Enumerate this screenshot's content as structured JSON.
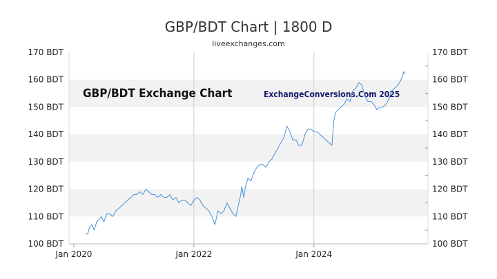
{
  "title": "GBP/BDT Chart | 1800 D",
  "subtitle": "liveexchanges.com",
  "chart_data": {
    "type": "line",
    "title": "GBP/BDT Chart | 1800 D",
    "xlabel": "",
    "ylabel": "",
    "unit": "BDT",
    "ylim": [
      100,
      170
    ],
    "xlim": [
      2019.92,
      2025.9
    ],
    "y_ticks": [
      100,
      110,
      120,
      130,
      140,
      150,
      160,
      170
    ],
    "y_tick_labels": [
      "100 BDT",
      "110 BDT",
      "120 BDT",
      "130 BDT",
      "140 BDT",
      "150 BDT",
      "160 BDT",
      "170 BDT"
    ],
    "x_ticks": [
      2020.0,
      2022.0,
      2024.0
    ],
    "x_tick_labels": [
      "Jan 2020",
      "Jan 2022",
      "Jan 2024"
    ],
    "band_color": "#f2f2f2",
    "line_color": "#4a90d6",
    "annotations": [
      "GBP/BDT Exchange Chart",
      "ExchangeConversions.Com 2025"
    ],
    "series": [
      {
        "name": "GBP/BDT",
        "x": [
          2020.2,
          2020.23,
          2020.26,
          2020.3,
          2020.34,
          2020.38,
          2020.42,
          2020.46,
          2020.5,
          2020.55,
          2020.6,
          2020.65,
          2020.7,
          2020.75,
          2020.8,
          2020.85,
          2020.9,
          2020.95,
          2021.0,
          2021.05,
          2021.1,
          2021.15,
          2021.2,
          2021.25,
          2021.3,
          2021.35,
          2021.4,
          2021.45,
          2021.5,
          2021.55,
          2021.6,
          2021.65,
          2021.7,
          2021.75,
          2021.8,
          2021.85,
          2021.9,
          2021.95,
          2022.0,
          2022.05,
          2022.1,
          2022.15,
          2022.2,
          2022.25,
          2022.3,
          2022.35,
          2022.4,
          2022.45,
          2022.5,
          2022.55,
          2022.6,
          2022.65,
          2022.7,
          2022.72,
          2022.75,
          2022.78,
          2022.8,
          2022.83,
          2022.86,
          2022.9,
          2022.95,
          2023.0,
          2023.05,
          2023.1,
          2023.15,
          2023.2,
          2023.25,
          2023.3,
          2023.35,
          2023.4,
          2023.45,
          2023.5,
          2023.55,
          2023.6,
          2023.65,
          2023.7,
          2023.75,
          2023.8,
          2023.85,
          2023.9,
          2023.95,
          2024.0,
          2024.05,
          2024.1,
          2024.15,
          2024.2,
          2024.25,
          2024.3,
          2024.33,
          2024.36,
          2024.4,
          2024.45,
          2024.5,
          2024.55,
          2024.6,
          2024.65,
          2024.7,
          2024.75,
          2024.8,
          2024.85,
          2024.9,
          2024.95,
          2025.0,
          2025.05,
          2025.1,
          2025.15,
          2025.2,
          2025.25,
          2025.3,
          2025.35,
          2025.4,
          2025.45,
          2025.5,
          2025.52
        ],
        "values": [
          104,
          103.5,
          106,
          107,
          105,
          108,
          109,
          110,
          108,
          111,
          111,
          110,
          112,
          113,
          114,
          115,
          116,
          117,
          118,
          118,
          119,
          118,
          120,
          119,
          118,
          118,
          117,
          118,
          117,
          117,
          118,
          116,
          117,
          115,
          116,
          116,
          115,
          114,
          116,
          117,
          116,
          114,
          113,
          112,
          110,
          107,
          112,
          111,
          112,
          115,
          113,
          111,
          110,
          112,
          115,
          118,
          121,
          117,
          121,
          124,
          123,
          126,
          128,
          129,
          129,
          128,
          130,
          131,
          133,
          135,
          137,
          139,
          143,
          141,
          138,
          138,
          136,
          136,
          140,
          142,
          142,
          141,
          141,
          140,
          139,
          138,
          137,
          136,
          145,
          148,
          149,
          150,
          151,
          153,
          152,
          156,
          157,
          159,
          158,
          154,
          152,
          152,
          151,
          149,
          150,
          150,
          151,
          153,
          156,
          157,
          158,
          160,
          163,
          162
        ]
      }
    ]
  }
}
